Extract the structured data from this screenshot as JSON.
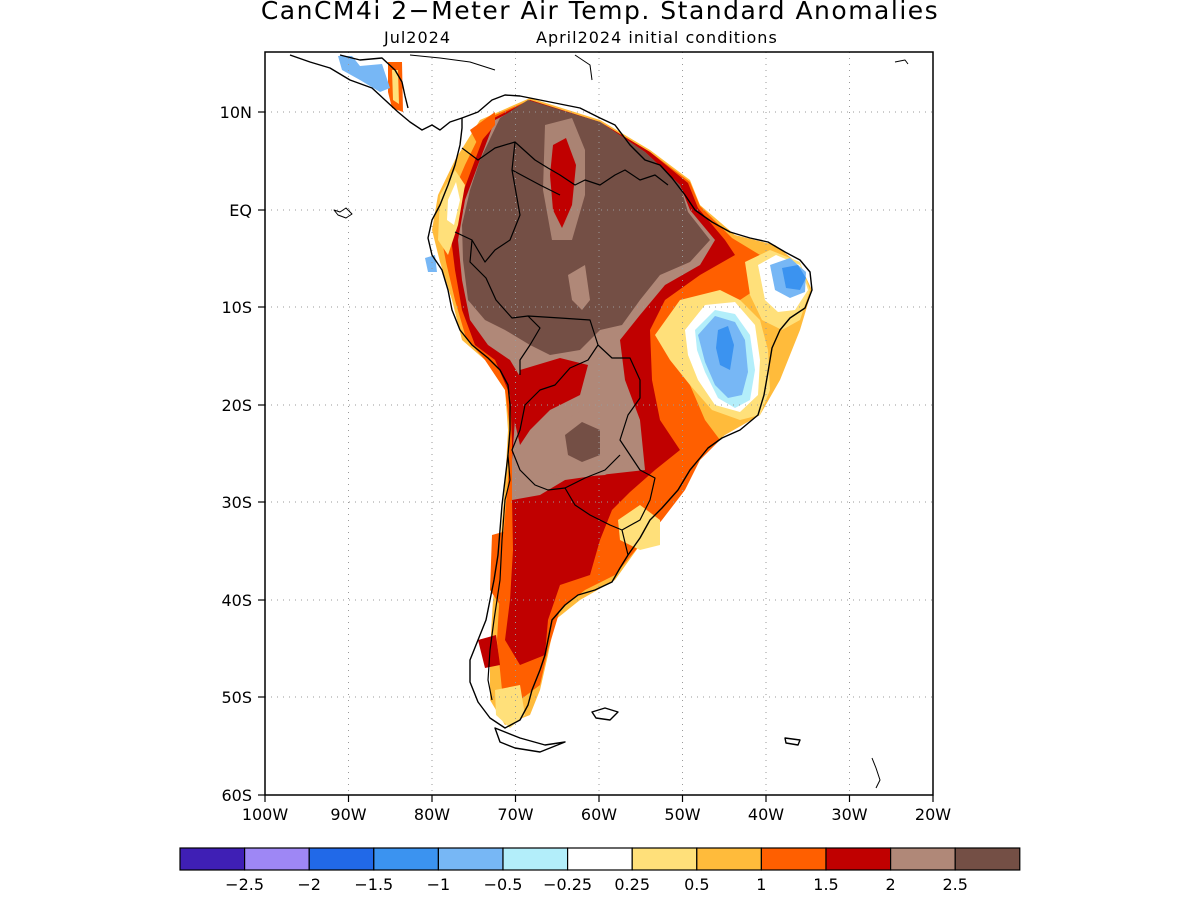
{
  "title": "CanCM4i 2−Meter Air Temp. Standard Anomalies",
  "subtitle_left": "Jul2024",
  "subtitle_right": "April2024 initial conditions",
  "chart_data": {
    "type": "heatmap",
    "x_ticks": [
      "100W",
      "90W",
      "80W",
      "70W",
      "60W",
      "50W",
      "40W",
      "30W",
      "20W"
    ],
    "y_ticks": [
      "10N",
      "EQ",
      "10S",
      "20S",
      "30S",
      "40S",
      "50S",
      "60S"
    ],
    "lon_range": [
      -100,
      -20
    ],
    "lat_range": [
      -60,
      15
    ],
    "grid": true,
    "colorbar": {
      "colors": [
        "#3f1fb5",
        "#9e87f5",
        "#2169e8",
        "#3b93f0",
        "#77b7f5",
        "#b3eefa",
        "#ffffff",
        "#ffe07a",
        "#ffbb3b",
        "#ff5f00",
        "#c00000",
        "#b08878",
        "#744f45"
      ],
      "labels": [
        "−2.5",
        "−2",
        "−1.5",
        "−1",
        "−0.5",
        "−0.25",
        "0.25",
        "0.5",
        "1",
        "1.5",
        "2",
        "2.5"
      ]
    }
  }
}
